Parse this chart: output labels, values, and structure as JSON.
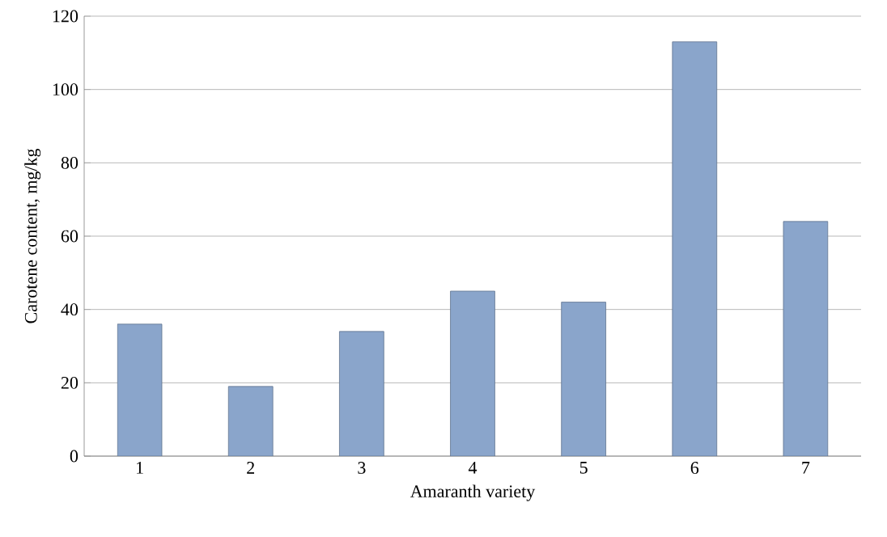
{
  "chart_data": {
    "type": "bar",
    "xlabel": "Amaranth variety",
    "ylabel": "Carotene content, mg/kg",
    "categories": [
      "1",
      "2",
      "3",
      "4",
      "5",
      "6",
      "7"
    ],
    "values": [
      36,
      19,
      34,
      45,
      42,
      113,
      64
    ],
    "color": "#8aa5cb",
    "ylim": [
      0,
      120
    ],
    "yticks": [
      0,
      20,
      40,
      60,
      80,
      100,
      120
    ],
    "grid": "y"
  }
}
